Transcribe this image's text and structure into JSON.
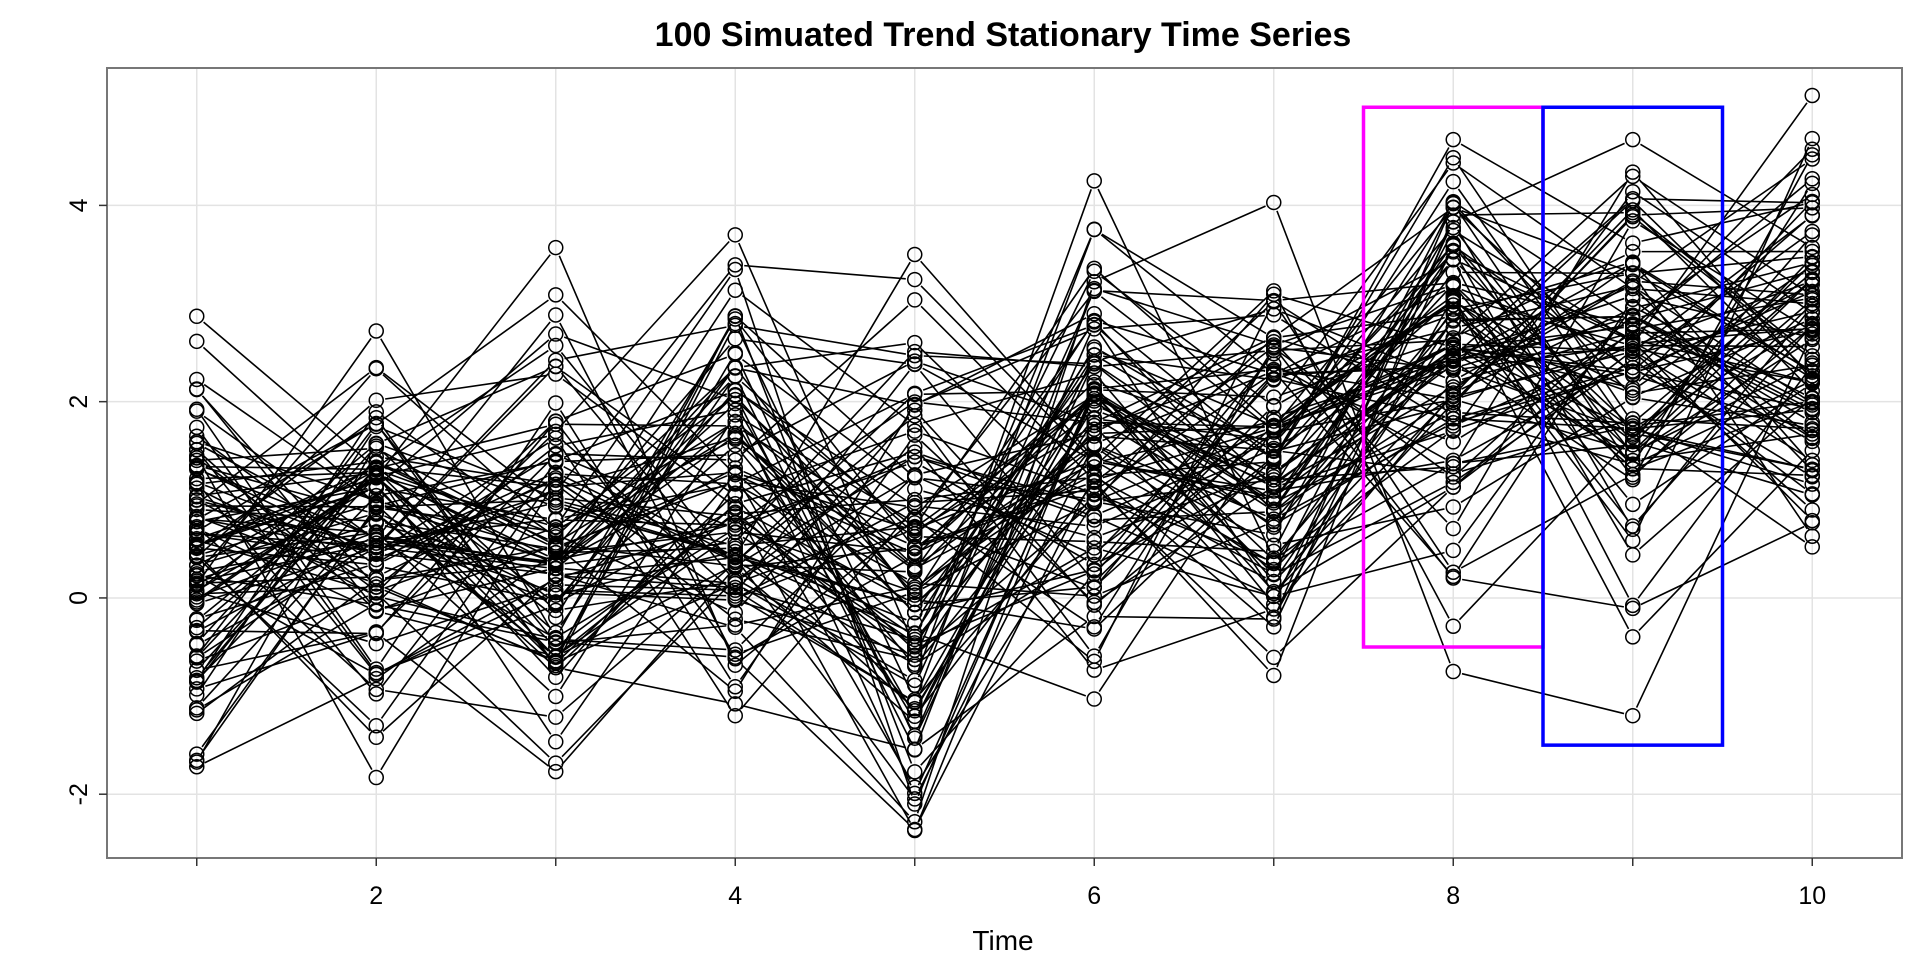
{
  "chart_data": {
    "type": "line",
    "title": "100 Simuated Trend Stationary Time Series",
    "xlabel": "Time",
    "ylabel": "",
    "xlim": [
      0.5,
      10.5
    ],
    "ylim": [
      -2.65,
      5.4
    ],
    "x_ticks": [
      1,
      2,
      3,
      4,
      5,
      6,
      7,
      8,
      9,
      10
    ],
    "x_tick_labels": [
      "",
      "2",
      "",
      "4",
      "",
      "6",
      "",
      "8",
      "",
      "10"
    ],
    "y_ticks": [
      -2,
      0,
      2,
      4
    ],
    "y_tick_labels": [
      "-2",
      "0",
      "2",
      "4"
    ],
    "grid": true,
    "n_series": 100,
    "x": [
      1,
      2,
      3,
      4,
      5,
      6,
      7,
      8,
      9,
      10
    ],
    "series_color": "#000000",
    "point_extremes": {
      "min": [
        -1.72,
        -1.83,
        -1.77,
        -1.2,
        -2.37,
        -1.03,
        -0.79,
        -0.75,
        -1.2,
        0.52
      ],
      "max": [
        2.87,
        2.72,
        3.57,
        3.7,
        3.5,
        4.25,
        4.03,
        4.67,
        4.67,
        5.12
      ]
    },
    "highlight_boxes": [
      {
        "x": [
          7.5,
          8.5
        ],
        "y": [
          -0.5,
          5.0
        ],
        "color": "#ff00ff"
      },
      {
        "x": [
          8.5,
          9.5
        ],
        "y": [
          -1.5,
          5.0
        ],
        "color": "#0000ff"
      }
    ]
  }
}
